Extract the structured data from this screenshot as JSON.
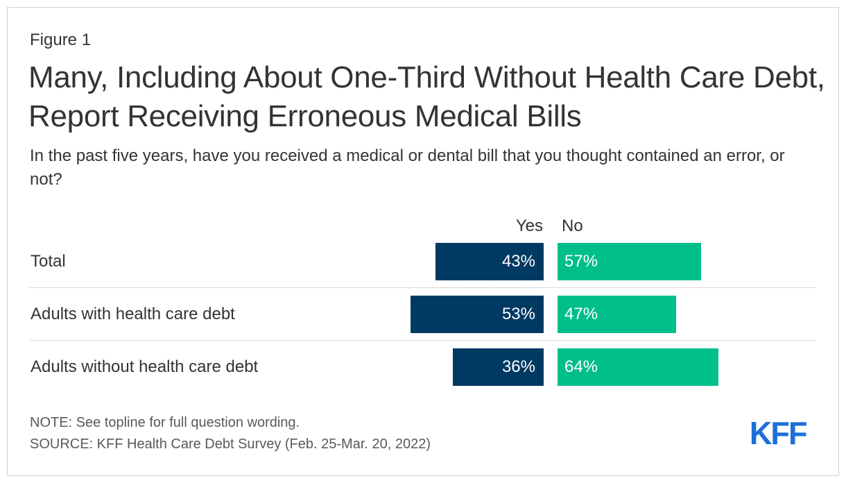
{
  "figure_label": "Figure 1",
  "title": "Many, Including About One-Third Without Health Care Debt, Report Receiving Erroneous Medical Bills",
  "subtitle": "In the past five years, have you received a medical or dental bill that you thought contained an error, or not?",
  "note": "NOTE: See topline for full question wording.",
  "source": "SOURCE: KFF Health Care Debt Survey (Feb. 25-Mar. 20, 2022)",
  "logo_text": "KFF",
  "colors": {
    "yes": "#003a63",
    "no": "#00bf8a",
    "logo": "#1e6fd9"
  },
  "chart_data": {
    "type": "bar",
    "orientation": "horizontal-diverging",
    "categories": [
      "Total",
      "Adults with health care debt",
      "Adults without health care debt"
    ],
    "series": [
      {
        "name": "Yes",
        "values": [
          43,
          53,
          36
        ],
        "labels": [
          "43%",
          "53%",
          "36%"
        ]
      },
      {
        "name": "No",
        "values": [
          57,
          47,
          64
        ],
        "labels": [
          "57%",
          "47%",
          "64%"
        ]
      }
    ],
    "unit": "%",
    "xlim": [
      0,
      100
    ]
  }
}
